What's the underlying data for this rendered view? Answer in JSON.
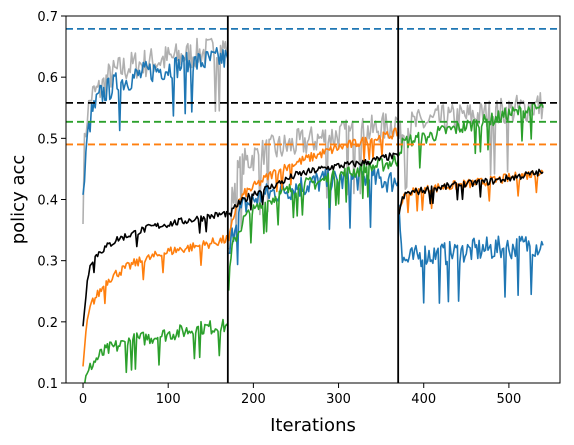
{
  "chart_data": {
    "type": "line",
    "title": "",
    "xlabel": "Iterations",
    "ylabel": "policy acc",
    "xlim": [
      -20,
      560
    ],
    "ylim": [
      0.1,
      0.7
    ],
    "xticks": [
      0,
      100,
      200,
      300,
      400,
      500
    ],
    "yticks": [
      0.1,
      0.2,
      0.3,
      0.4,
      0.5,
      0.6,
      0.7
    ],
    "xtick_labels": [
      "0",
      "100",
      "200",
      "300",
      "400",
      "500"
    ],
    "ytick_labels": [
      "0.1",
      "0.2",
      "0.3",
      "0.4",
      "0.5",
      "0.6",
      "0.7"
    ],
    "grid": false,
    "legend": "none",
    "vlines": [
      {
        "x": 170,
        "color": "#000000"
      },
      {
        "x": 370,
        "color": "#000000"
      }
    ],
    "hlines": [
      {
        "y": 0.679,
        "color": "#1f77b4",
        "style": "dashed"
      },
      {
        "y": 0.558,
        "color": "#000000",
        "style": "dashed"
      },
      {
        "y": 0.527,
        "color": "#2ca02c",
        "style": "dashed"
      },
      {
        "y": 0.49,
        "color": "#ff7f0e",
        "style": "dashed"
      }
    ],
    "series": [
      {
        "color": "#b0b0b0",
        "noise": 0.025,
        "segments": [
          {
            "x": [
              0,
              5,
              10,
              20,
              30,
              40,
              60,
              80,
              100,
              120,
              140,
              160,
              170
            ],
            "y": [
              0.46,
              0.54,
              0.57,
              0.58,
              0.6,
              0.61,
              0.62,
              0.625,
              0.63,
              0.635,
              0.64,
              0.645,
              0.65
            ]
          },
          {
            "x": [
              171,
              175,
              180,
              190,
              200,
              220,
              250,
              280,
              300,
              330,
              360,
              370
            ],
            "y": [
              0.3,
              0.4,
              0.44,
              0.46,
              0.47,
              0.48,
              0.49,
              0.5,
              0.505,
              0.51,
              0.52,
              0.53
            ]
          },
          {
            "x": [
              371,
              375,
              380,
              400,
              420,
              450,
              480,
              500,
              520,
              540
            ],
            "y": [
              0.5,
              0.51,
              0.52,
              0.525,
              0.53,
              0.535,
              0.54,
              0.545,
              0.55,
              0.555
            ]
          }
        ]
      },
      {
        "color": "#1f77b4",
        "noise": 0.02,
        "segments": [
          {
            "x": [
              0,
              5,
              10,
              20,
              30,
              40,
              60,
              80,
              100,
              120,
              140,
              160,
              170
            ],
            "y": [
              0.4,
              0.5,
              0.54,
              0.57,
              0.58,
              0.59,
              0.6,
              0.61,
              0.615,
              0.62,
              0.625,
              0.63,
              0.63
            ]
          },
          {
            "x": [
              171,
              175,
              180,
              190,
              200,
              220,
              250,
              280,
              300,
              330,
              360,
              370
            ],
            "y": [
              0.3,
              0.34,
              0.37,
              0.39,
              0.4,
              0.41,
              0.42,
              0.43,
              0.43,
              0.435,
              0.43,
              0.43
            ]
          },
          {
            "x": [
              371,
              375,
              380,
              400,
              420,
              450,
              480,
              500,
              520,
              540
            ],
            "y": [
              0.4,
              0.3,
              0.3,
              0.31,
              0.31,
              0.315,
              0.32,
              0.32,
              0.325,
              0.325
            ]
          }
        ]
      },
      {
        "color": "#2ca02c",
        "noise": 0.012,
        "segments": [
          {
            "x": [
              0,
              5,
              10,
              20,
              30,
              40,
              60,
              80,
              100,
              120,
              140,
              160,
              170
            ],
            "y": [
              0.1,
              0.11,
              0.13,
              0.145,
              0.155,
              0.16,
              0.17,
              0.175,
              0.18,
              0.185,
              0.19,
              0.192,
              0.193
            ]
          },
          {
            "x": [
              171,
              175,
              180,
              190,
              200,
              220,
              250,
              280,
              300,
              330,
              360,
              370
            ],
            "y": [
              0.26,
              0.32,
              0.34,
              0.37,
              0.38,
              0.4,
              0.42,
              0.43,
              0.44,
              0.45,
              0.46,
              0.465
            ]
          },
          {
            "x": [
              371,
              375,
              380,
              400,
              420,
              450,
              480,
              500,
              520,
              540
            ],
            "y": [
              0.48,
              0.49,
              0.495,
              0.5,
              0.51,
              0.52,
              0.53,
              0.54,
              0.545,
              0.55
            ]
          }
        ]
      },
      {
        "color": "#ff7f0e",
        "noise": 0.008,
        "segments": [
          {
            "x": [
              0,
              5,
              10,
              20,
              30,
              40,
              60,
              80,
              100,
              120,
              140,
              160,
              170
            ],
            "y": [
              0.13,
              0.2,
              0.23,
              0.25,
              0.27,
              0.28,
              0.295,
              0.305,
              0.315,
              0.32,
              0.325,
              0.332,
              0.335
            ]
          },
          {
            "x": [
              171,
              175,
              180,
              190,
              200,
              220,
              250,
              280,
              300,
              330,
              360,
              370
            ],
            "y": [
              0.33,
              0.36,
              0.39,
              0.41,
              0.42,
              0.44,
              0.46,
              0.475,
              0.485,
              0.495,
              0.505,
              0.51
            ]
          },
          {
            "x": [
              371,
              375,
              380,
              400,
              420,
              450,
              480,
              500,
              520,
              540
            ],
            "y": [
              0.38,
              0.4,
              0.41,
              0.415,
              0.42,
              0.425,
              0.43,
              0.435,
              0.44,
              0.445
            ]
          }
        ]
      },
      {
        "color": "#000000",
        "noise": 0.006,
        "segments": [
          {
            "x": [
              0,
              5,
              10,
              20,
              30,
              40,
              60,
              80,
              100,
              120,
              140,
              160,
              170
            ],
            "y": [
              0.19,
              0.27,
              0.3,
              0.315,
              0.325,
              0.335,
              0.345,
              0.355,
              0.36,
              0.365,
              0.37,
              0.375,
              0.378
            ]
          },
          {
            "x": [
              171,
              175,
              180,
              190,
              200,
              220,
              250,
              280,
              300,
              330,
              360,
              370
            ],
            "y": [
              0.37,
              0.38,
              0.39,
              0.4,
              0.41,
              0.42,
              0.44,
              0.45,
              0.455,
              0.46,
              0.47,
              0.47
            ]
          },
          {
            "x": [
              371,
              375,
              380,
              400,
              420,
              450,
              480,
              500,
              520,
              540
            ],
            "y": [
              0.38,
              0.4,
              0.41,
              0.415,
              0.42,
              0.425,
              0.43,
              0.435,
              0.44,
              0.445
            ]
          }
        ]
      }
    ]
  }
}
